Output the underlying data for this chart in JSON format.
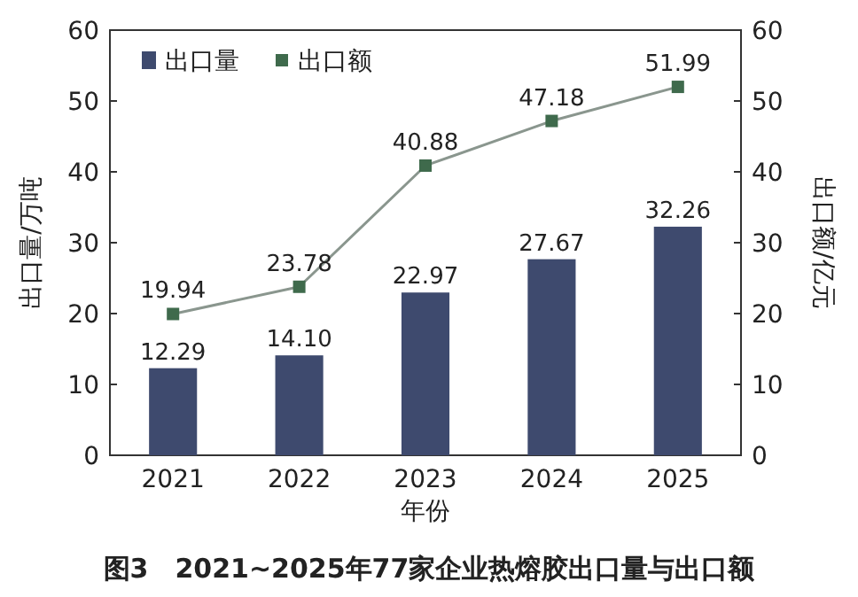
{
  "chart_data": {
    "type": "bar",
    "title": "图3　2021~2025年77家企业热熔胶出口量与出口额",
    "xlabel": "年份",
    "ylabel": "出口量/万吨",
    "y2label": "出口额/亿元",
    "categories": [
      "2021",
      "2022",
      "2023",
      "2024",
      "2025"
    ],
    "series": [
      {
        "name": "出口量",
        "color": "#3e4a6e",
        "values": [
          12.29,
          14.1,
          22.97,
          27.67,
          32.26
        ],
        "value_labels": [
          "12.29",
          "14.10",
          "22.97",
          "27.67",
          "32.26"
        ]
      },
      {
        "name": "出口额",
        "type": "line",
        "axis": "y2",
        "color": "#8a968e",
        "marker": "square",
        "values": [
          19.94,
          23.78,
          40.88,
          47.18,
          51.99
        ],
        "value_labels": [
          "19.94",
          "23.78",
          "40.88",
          "47.18",
          "51.99"
        ]
      }
    ],
    "ylim": [
      0,
      60
    ],
    "yticks": [
      0,
      10,
      20,
      30,
      40,
      50,
      60
    ],
    "y2lim": [
      0,
      60
    ],
    "y2ticks": [
      0,
      10,
      20,
      30,
      40,
      50,
      60
    ],
    "legend": "top left",
    "grid": false
  }
}
